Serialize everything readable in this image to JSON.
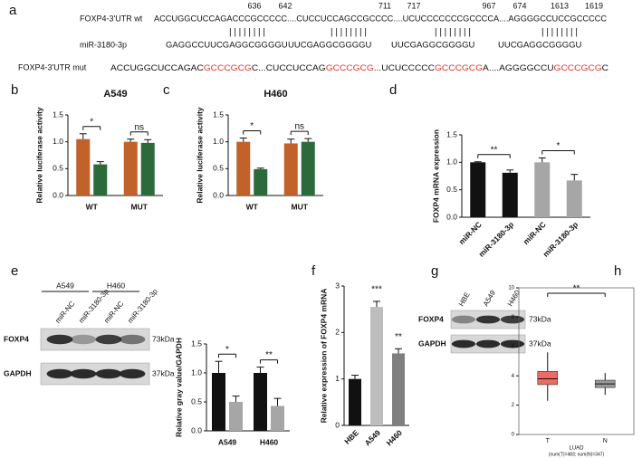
{
  "panel_letters": [
    "a",
    "b",
    "c",
    "d",
    "e",
    "f",
    "g",
    "h"
  ],
  "sequence_panel": {
    "positions": [
      636,
      642,
      711,
      717,
      967,
      674,
      1613,
      1619
    ],
    "wt_label": "FOXP4-3'UTR wt",
    "wt_sequence": "ACCUGGCUCCAGACCCGCCCCC....CUCCUCCAGCCGCCCC....UCUCCCCCCCGCCCCA....AGGGGCCUCCGCCCCC",
    "pairing": [
      "||||||||",
      "||||||||",
      "||||||||",
      "||||||||"
    ],
    "mirna_label": "miR-3180-3p",
    "mirna_sequences": [
      "GAGGCCUUCGAGGCGGGGU",
      "UUCGAGGCGGGGU",
      "UUCGAGGCGGGGU",
      "UUCGAGGCGGGGU"
    ],
    "mut_label": "FOXP4-3'UTR mut",
    "mut_segments": [
      {
        "text": "ACCUGGCUCCAGAC",
        "mutated": false
      },
      {
        "text": "GCCCGCG",
        "mutated": true
      },
      {
        "text": "C...CUCCUCCAG",
        "mutated": false
      },
      {
        "text": "GCCCGCG",
        "mutated": true
      },
      {
        "text": "...UCUCCCCC",
        "mutated": false
      },
      {
        "text": "GCCCGCG",
        "mutated": true
      },
      {
        "text": "A....AGGGGCCU",
        "mutated": false
      },
      {
        "text": "GCCCGCG",
        "mutated": true
      },
      {
        "text": "C",
        "mutated": false
      }
    ],
    "mutated_color": "#e0322c"
  },
  "blot_e": {
    "groups": [
      "A549",
      "H460"
    ],
    "lanes": [
      "miR-NC",
      "miR-3180-3p",
      "miR-NC",
      "miR-3180-3p"
    ],
    "rows": [
      {
        "protein": "FOXP4",
        "size": "73kDa"
      },
      {
        "protein": "GAPDH",
        "size": "37kDa"
      }
    ]
  },
  "blot_g": {
    "lanes": [
      "HBE",
      "A549",
      "H460"
    ],
    "rows": [
      {
        "protein": "FOXP4",
        "size": "73kDa"
      },
      {
        "protein": "GAPDH",
        "size": "37kDa"
      }
    ]
  },
  "chart_data": [
    {
      "type": "bar",
      "title": "A549",
      "y_label": "Relative luciferase activity",
      "categories": [
        "WT",
        "MUT"
      ],
      "series": [
        {
          "color": "#c0622a",
          "values": [
            1.05,
            1.0
          ],
          "errors": [
            0.1,
            0.05
          ]
        },
        {
          "color": "#2d6a3b",
          "values": [
            0.58,
            0.98
          ],
          "errors": [
            0.05,
            0.06
          ]
        }
      ],
      "ylim": [
        0,
        1.5
      ],
      "yticks": [
        {
          "value": 0,
          "label": "0.0"
        },
        {
          "value": 0.5,
          "label": "0.5"
        },
        {
          "value": 1,
          "label": "1.0"
        },
        {
          "value": 1.5,
          "label": "1.5"
        }
      ],
      "annotations": [
        "*",
        "ns"
      ]
    },
    {
      "type": "bar",
      "title": "H460",
      "y_label": "Relative luciferase activity",
      "categories": [
        "WT",
        "MUT"
      ],
      "series": [
        {
          "color": "#c0622a",
          "values": [
            1.0,
            0.97
          ],
          "errors": [
            0.07,
            0.08
          ]
        },
        {
          "color": "#2d6a3b",
          "values": [
            0.49,
            1.0
          ],
          "errors": [
            0.02,
            0.06
          ]
        }
      ],
      "ylim": [
        0,
        1.5
      ],
      "yticks": [
        {
          "value": 0,
          "label": "0.0"
        },
        {
          "value": 0.5,
          "label": "0.5"
        },
        {
          "value": 1,
          "label": "1.0"
        },
        {
          "value": 1.5,
          "label": "1.5"
        }
      ],
      "annotations": [
        "*",
        "ns"
      ]
    },
    {
      "type": "bar",
      "y_label": "FOXP4 mRNA expression",
      "categories": [
        "miR-NC",
        "miR-3180-3p",
        "miR-NC",
        "miR-3180-3p"
      ],
      "values": [
        1.0,
        0.81,
        1.0,
        0.67
      ],
      "errors": [
        0.01,
        0.05,
        0.08,
        0.11
      ],
      "colors": [
        "#111111",
        "#111111",
        "#a6a6a6",
        "#a6a6a6"
      ],
      "ylim": [
        0,
        1.5
      ],
      "yticks": [
        {
          "value": 0,
          "label": "0.0"
        },
        {
          "value": 0.5,
          "label": "0.5"
        },
        {
          "value": 1,
          "label": "1.0"
        },
        {
          "value": 1.5,
          "label": "1.5"
        }
      ],
      "annotations": [
        "**",
        "*"
      ]
    },
    {
      "type": "bar",
      "y_label": "Relative gray value/GAPDH",
      "categories": [
        "A549",
        "H460"
      ],
      "series": [
        {
          "color": "#111111",
          "values": [
            1.0,
            1.0
          ],
          "errors": [
            0.2,
            0.1
          ]
        },
        {
          "color": "#a6a6a6",
          "values": [
            0.5,
            0.43
          ],
          "errors": [
            0.1,
            0.13
          ]
        }
      ],
      "ylim": [
        0,
        1.5
      ],
      "yticks": [
        {
          "value": 0,
          "label": "0.0"
        },
        {
          "value": 0.5,
          "label": "0.5"
        },
        {
          "value": 1,
          "label": "1.0"
        },
        {
          "value": 1.5,
          "label": "1.5"
        }
      ],
      "annotations": [
        "*",
        "**"
      ]
    },
    {
      "type": "bar",
      "y_label": "Relative expression of FOXP4 mRNA",
      "categories": [
        "HBE",
        "A549",
        "H460"
      ],
      "values": [
        1.0,
        2.55,
        1.55
      ],
      "errors": [
        0.08,
        0.12,
        0.1
      ],
      "colors": [
        "#111111",
        "#bdbdbd",
        "#7f7f7f"
      ],
      "ylim": [
        0,
        3
      ],
      "yticks": [
        0,
        1,
        2,
        3
      ],
      "annotations": [
        "***",
        "**"
      ]
    },
    {
      "type": "box",
      "categories": [
        "T",
        "N"
      ],
      "colors": [
        "#e8463c",
        "#7f7f7f"
      ],
      "boxes": [
        {
          "whisker_low": 2.3,
          "q1": 3.4,
          "median": 3.8,
          "q3": 4.3,
          "whisker_high": 5.6
        },
        {
          "whisker_low": 2.7,
          "q1": 3.2,
          "median": 3.45,
          "q3": 3.7,
          "whisker_high": 4.2
        }
      ],
      "ylim": [
        0,
        10
      ],
      "yticks": [
        0,
        2,
        4,
        6,
        8,
        10
      ],
      "x_label": "LUAD",
      "note": "(num(T)=483; num(N)=347)",
      "annotations": [
        "**"
      ]
    }
  ]
}
